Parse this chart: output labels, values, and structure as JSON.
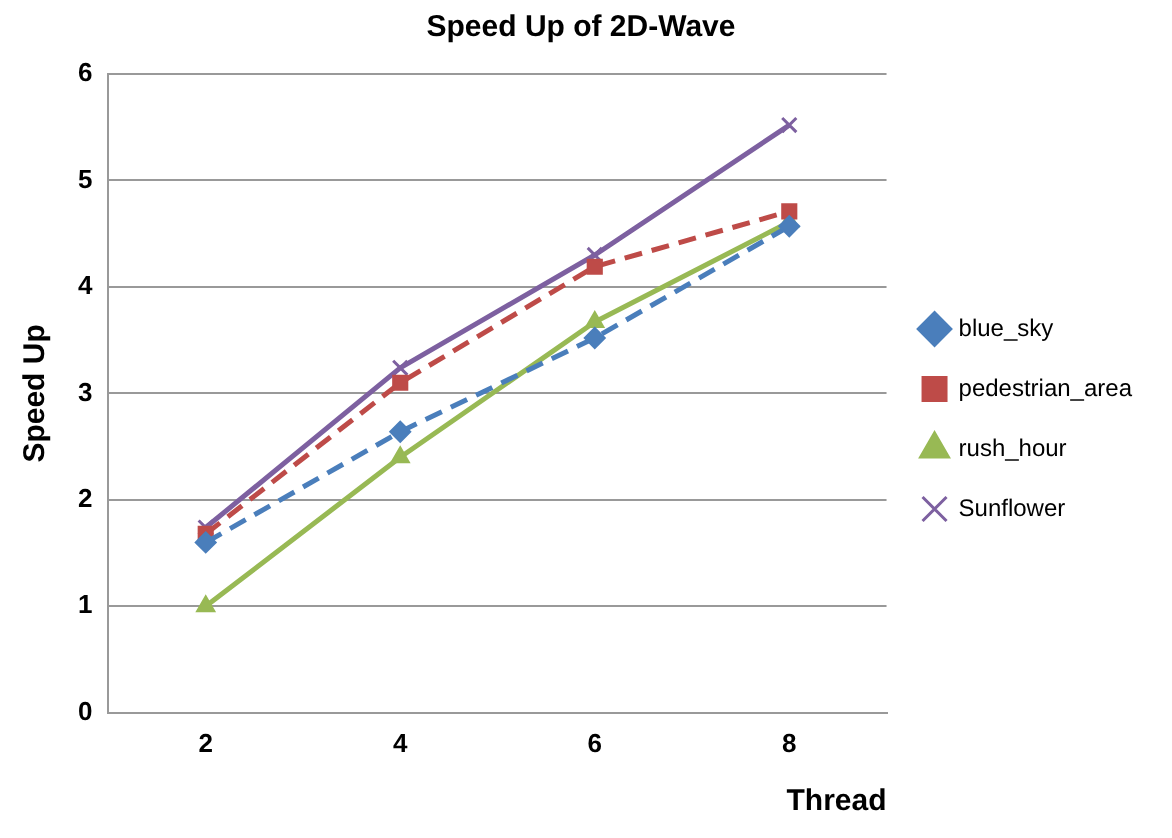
{
  "chart_data": {
    "type": "line",
    "title": "Speed Up of 2D-Wave",
    "xlabel": "Thread",
    "ylabel": "Speed Up",
    "categories": [
      "2",
      "4",
      "6",
      "8"
    ],
    "series": [
      {
        "name": "blue_sky",
        "color": "#4a7ebb",
        "values": [
          1.6,
          2.64,
          3.52,
          4.57
        ],
        "marker": "diamond",
        "line_style": "dashed"
      },
      {
        "name": "pedestrian_area",
        "color": "#be4b48",
        "values": [
          1.68,
          3.1,
          4.19,
          4.71
        ],
        "marker": "square",
        "line_style": "dashed"
      },
      {
        "name": "rush_hour",
        "color": "#98b954",
        "values": [
          1.0,
          2.4,
          3.67,
          4.61
        ],
        "marker": "triangle",
        "line_style": "solid"
      },
      {
        "name": "Sunflower",
        "color": "#7d60a0",
        "values": [
          1.74,
          3.24,
          4.3,
          5.52
        ],
        "marker": "cross",
        "line_style": "solid"
      }
    ],
    "ylim": [
      0,
      6
    ],
    "yticks": [
      0,
      1,
      2,
      3,
      4,
      5,
      6
    ],
    "grid": "y",
    "legend": "right"
  }
}
